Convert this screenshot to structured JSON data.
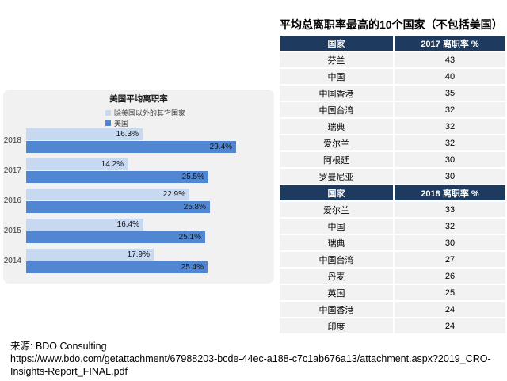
{
  "chart_data": [
    {
      "type": "bar",
      "orientation": "horizontal",
      "title": "美国平均离职率",
      "categories": [
        "2018",
        "2017",
        "2016",
        "2015",
        "2014"
      ],
      "series": [
        {
          "name": "除美国以外的其它国家",
          "color": "#c7d9f1",
          "values": [
            16.3,
            14.2,
            22.9,
            16.4,
            17.9
          ]
        },
        {
          "name": "美国",
          "color": "#5187d2",
          "values": [
            29.4,
            25.5,
            25.8,
            25.1,
            25.4
          ]
        }
      ],
      "value_suffix": "%",
      "data_labels": "inside-end",
      "xlim": [
        0,
        33
      ],
      "grid": false,
      "legend_position": "top",
      "panel_bg": "#f1f1f1"
    },
    {
      "type": "table",
      "title": "平均总离职率最高的10个国家（不包括美国）",
      "header_bg": "#1f3a5f",
      "row_bg": "#f2f2f2",
      "sections": [
        {
          "headers": [
            "国家",
            "2017 离职率 %"
          ],
          "rows": [
            [
              "芬兰",
              "43"
            ],
            [
              "中国",
              "40"
            ],
            [
              "中国香港",
              "35"
            ],
            [
              "中国台湾",
              "32"
            ],
            [
              "瑞典",
              "32"
            ],
            [
              "爱尔兰",
              "32"
            ],
            [
              "阿根廷",
              "30"
            ],
            [
              "罗曼尼亚",
              "30"
            ]
          ]
        },
        {
          "headers": [
            "国家",
            "2018 离职率 %"
          ],
          "rows": [
            [
              "爱尔兰",
              "33"
            ],
            [
              "中国",
              "32"
            ],
            [
              "瑞典",
              "30"
            ],
            [
              "中国台湾",
              "27"
            ],
            [
              "丹麦",
              "26"
            ],
            [
              "英国",
              "25"
            ],
            [
              "中国香港",
              "24"
            ],
            [
              "印度",
              "24"
            ]
          ]
        }
      ]
    }
  ],
  "source": {
    "label": "来源: BDO Consulting",
    "url_lines": [
      "https://www.bdo.com/getattachment/67988203-bcde-44ec-a188-c7c1ab676a13/attachment.aspx?2019_CRO-",
      "Insights-Report_FINAL.pdf"
    ]
  }
}
